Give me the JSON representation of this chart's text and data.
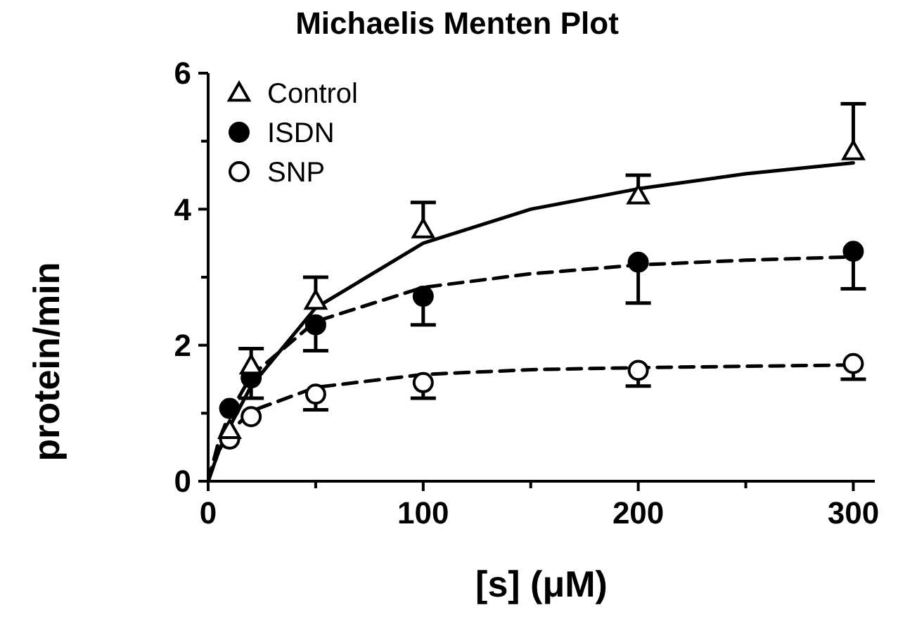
{
  "chart_data": {
    "type": "scatter",
    "title": "Michaelis Menten Plot",
    "xlabel": "[s] (μM)",
    "ylabel": "protein/min",
    "xlim": [
      0,
      310
    ],
    "xticks": [
      0,
      100,
      200,
      300
    ],
    "ylim": [
      0,
      6
    ],
    "yticks": [
      0,
      2,
      4,
      6
    ],
    "grid": false,
    "legend": "top left",
    "series": [
      {
        "name": "Control",
        "marker": "triangle",
        "color": "#ffffff",
        "x": [
          10,
          20,
          50,
          100,
          200,
          300
        ],
        "values": [
          0.75,
          1.7,
          2.65,
          3.7,
          4.2,
          4.85
        ],
        "errors": [
          null,
          [
            1.7,
            1.95
          ],
          [
            2.65,
            3.0
          ],
          [
            3.7,
            4.1
          ],
          [
            4.2,
            4.5
          ],
          [
            4.85,
            5.55
          ]
        ]
      },
      {
        "name": "ISDN",
        "marker": "circle",
        "color": "#000000",
        "x": [
          10,
          20,
          50,
          100,
          200,
          300
        ],
        "values": [
          1.07,
          1.52,
          2.3,
          2.72,
          3.22,
          3.38
        ],
        "errors": [
          null,
          [
            1.22,
            1.52
          ],
          [
            1.92,
            2.3
          ],
          [
            2.3,
            2.72
          ],
          [
            2.62,
            3.22
          ],
          [
            2.83,
            3.38
          ]
        ]
      },
      {
        "name": "SNP",
        "marker": "circle",
        "color": "#ffffff",
        "x": [
          10,
          20,
          50,
          100,
          200,
          300
        ],
        "values": [
          0.62,
          0.95,
          1.28,
          1.45,
          1.63,
          1.73
        ],
        "errors": [
          null,
          null,
          [
            1.05,
            1.28
          ],
          [
            1.22,
            1.45
          ],
          [
            1.4,
            1.63
          ],
          [
            1.5,
            1.73
          ]
        ]
      },
      {
        "type": "line",
        "line_style": "solid",
        "color": "#000000",
        "x": [
          0,
          5,
          10,
          20,
          50,
          100,
          150,
          200,
          250,
          300
        ],
        "values": [
          0,
          0.45,
          0.8,
          1.4,
          2.55,
          3.5,
          4.0,
          4.3,
          4.52,
          4.68
        ]
      },
      {
        "type": "line",
        "line_style": "dashed",
        "color": "#000000",
        "x": [
          0,
          5,
          10,
          20,
          50,
          100,
          150,
          200,
          250,
          300
        ],
        "values": [
          0,
          0.6,
          1.0,
          1.55,
          2.35,
          2.85,
          3.05,
          3.18,
          3.25,
          3.3
        ]
      },
      {
        "type": "line",
        "line_style": "dashed",
        "color": "#000000",
        "x": [
          0,
          5,
          10,
          20,
          50,
          100,
          150,
          200,
          250,
          300
        ],
        "values": [
          0,
          0.45,
          0.72,
          1.03,
          1.38,
          1.57,
          1.64,
          1.67,
          1.69,
          1.71
        ]
      }
    ]
  }
}
